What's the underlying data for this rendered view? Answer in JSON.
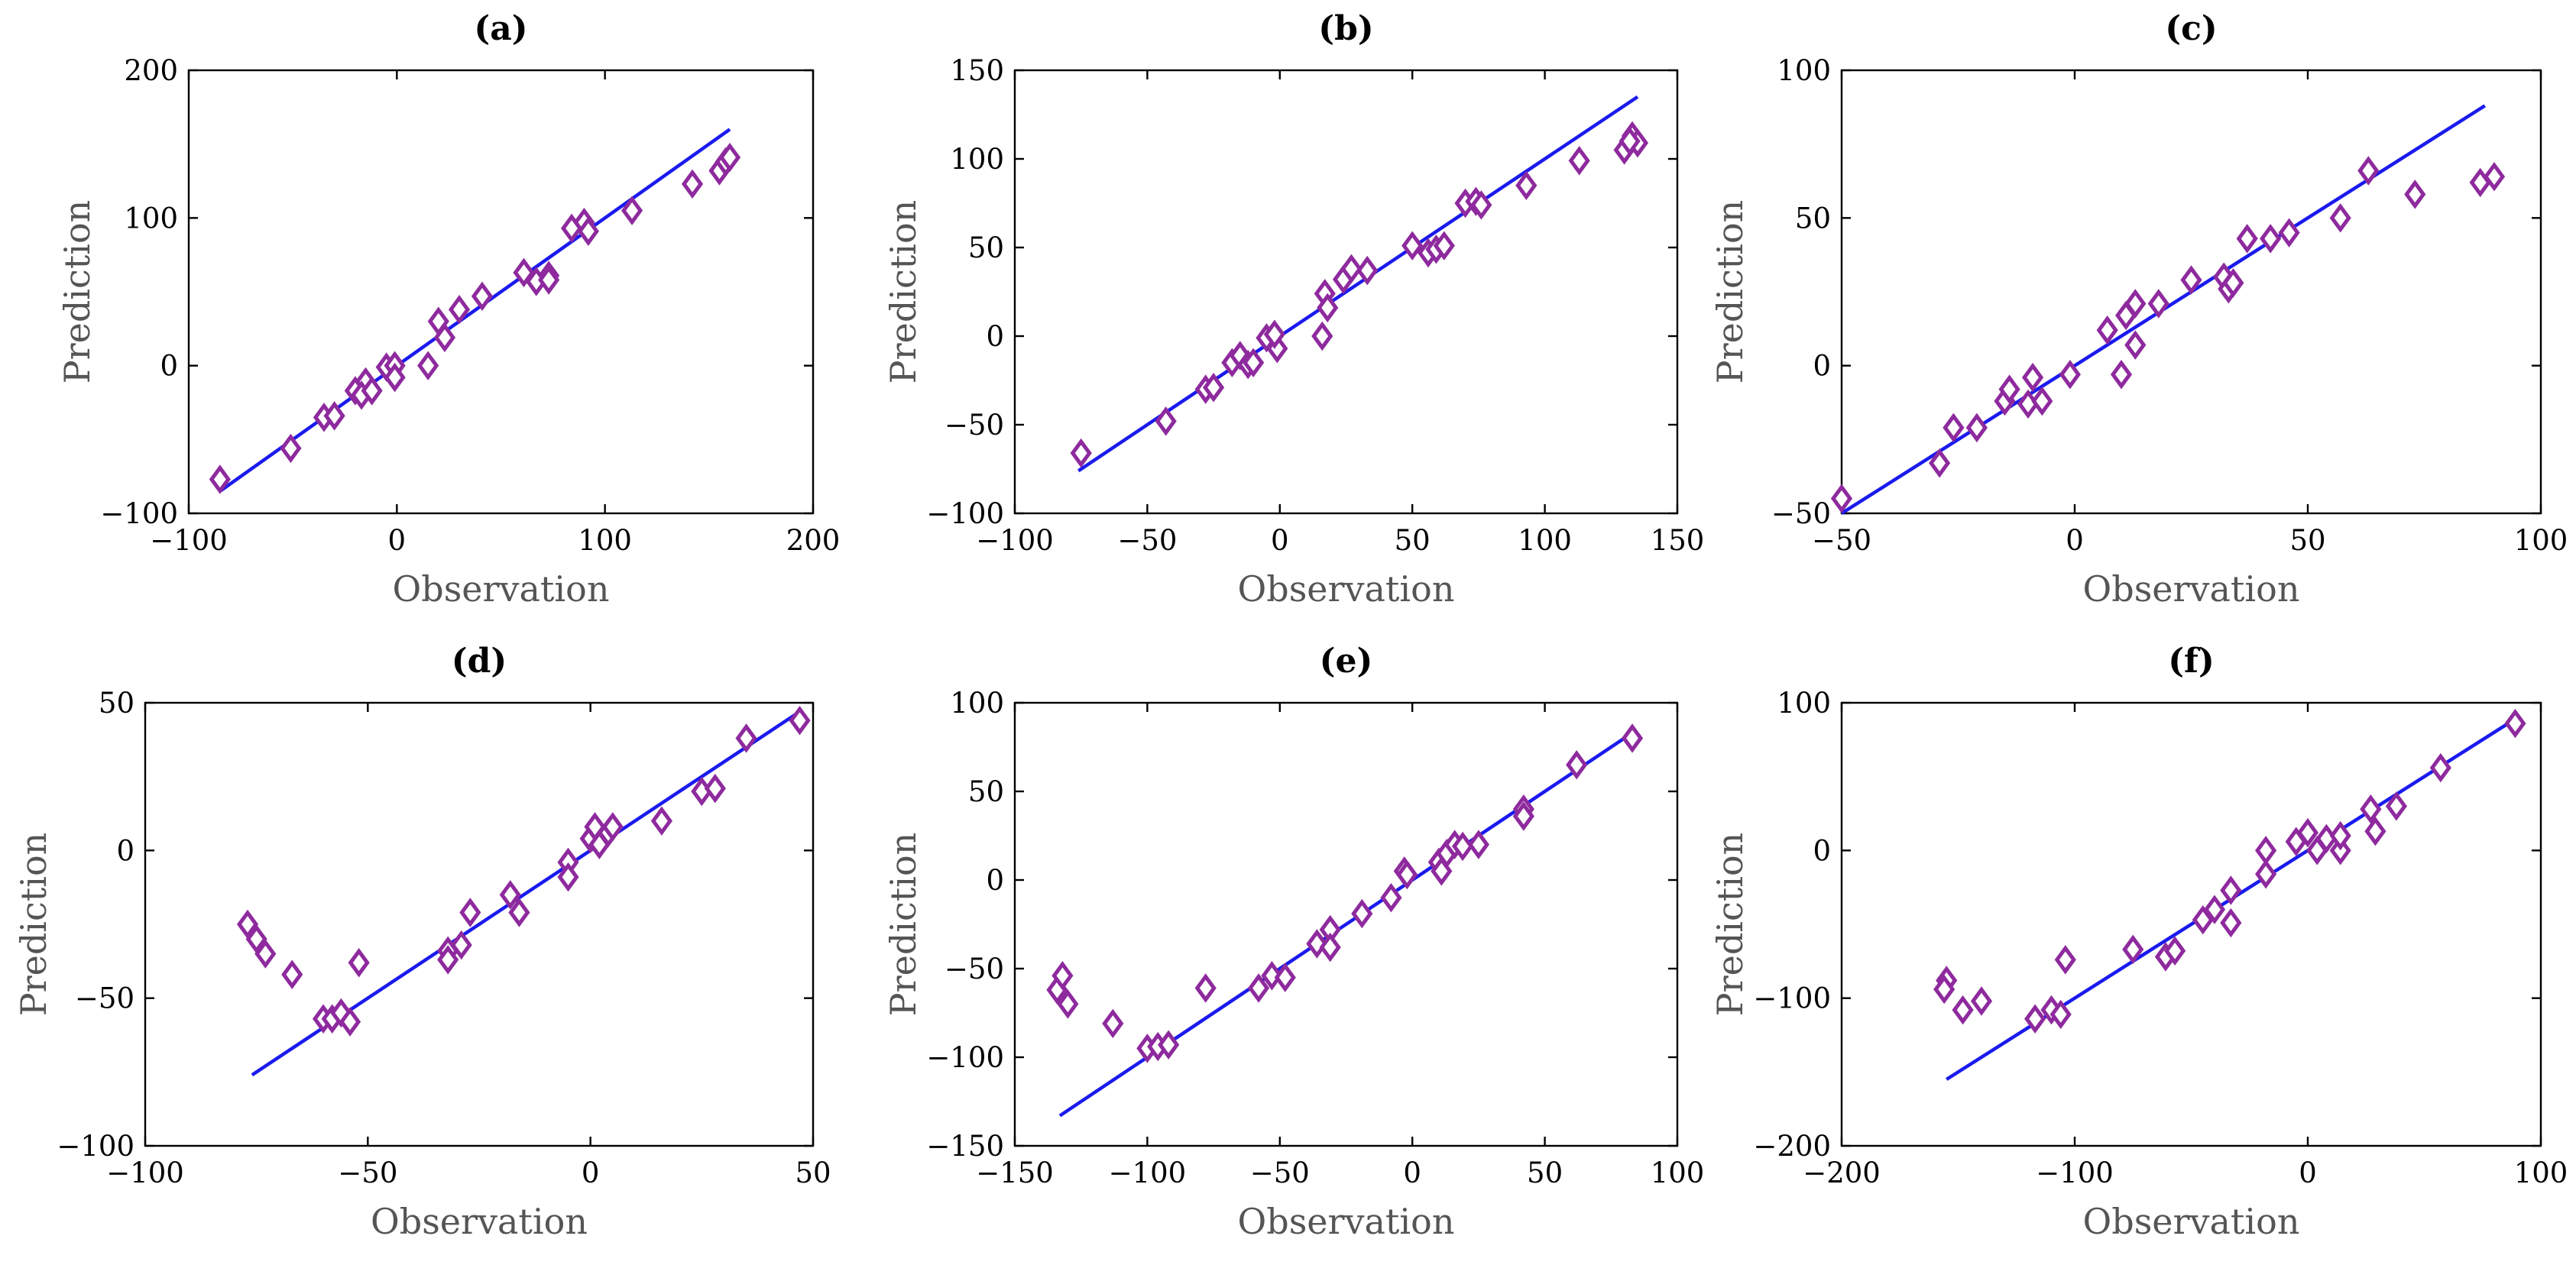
{
  "colors": {
    "marker": "#8e2a9e",
    "fit_line": "#1a1aee",
    "axes": "#000000",
    "axis_label": "#555555"
  },
  "chart_data": [
    {
      "type": "scatter",
      "title": "(a)",
      "xlabel": "Observation",
      "ylabel": "Prediction",
      "xlim": [
        -100,
        200
      ],
      "ylim": [
        -100,
        200
      ],
      "xticks": [
        -100,
        0,
        100,
        200
      ],
      "yticks": [
        -100,
        0,
        100,
        200
      ],
      "xtick_labels": [
        "−100",
        "0",
        "100",
        "200"
      ],
      "ytick_labels": [
        "−100",
        "0",
        "100",
        "200"
      ],
      "fit_line": {
        "x": [
          -85,
          160
        ],
        "y": [
          -85,
          160
        ]
      },
      "points": [
        [
          -85,
          -77
        ],
        [
          -51,
          -56
        ],
        [
          -35,
          -35
        ],
        [
          -30,
          -34
        ],
        [
          -20,
          -17
        ],
        [
          -15,
          -11
        ],
        [
          -17,
          -20
        ],
        [
          -12,
          -17
        ],
        [
          -5,
          -1
        ],
        [
          -1,
          0
        ],
        [
          -1,
          -8
        ],
        [
          15,
          0
        ],
        [
          20,
          30
        ],
        [
          23,
          19
        ],
        [
          30,
          38
        ],
        [
          41,
          47
        ],
        [
          61,
          63
        ],
        [
          67,
          57
        ],
        [
          73,
          61
        ],
        [
          73,
          58
        ],
        [
          84,
          93
        ],
        [
          90,
          97
        ],
        [
          92,
          91
        ],
        [
          113,
          105
        ],
        [
          142,
          123
        ],
        [
          155,
          132
        ],
        [
          158,
          138
        ],
        [
          160,
          141
        ]
      ]
    },
    {
      "type": "scatter",
      "title": "(b)",
      "xlabel": "Observation",
      "ylabel": "Prediction",
      "xlim": [
        -100,
        150
      ],
      "ylim": [
        -100,
        150
      ],
      "xticks": [
        -100,
        -50,
        0,
        50,
        100,
        150
      ],
      "yticks": [
        -100,
        -50,
        0,
        50,
        100,
        150
      ],
      "xtick_labels": [
        "−100",
        "−50",
        "0",
        "50",
        "100",
        "150"
      ],
      "ytick_labels": [
        "−100",
        "−50",
        "0",
        "50",
        "100",
        "150"
      ],
      "fit_line": {
        "x": [
          -76,
          135
        ],
        "y": [
          -76,
          135
        ]
      },
      "points": [
        [
          -75,
          -66
        ],
        [
          -43,
          -48
        ],
        [
          -28,
          -30
        ],
        [
          -25,
          -29
        ],
        [
          -18,
          -15
        ],
        [
          -15,
          -11
        ],
        [
          -12,
          -16
        ],
        [
          -10,
          -15
        ],
        [
          -5,
          -1
        ],
        [
          -1,
          -7
        ],
        [
          -2,
          1
        ],
        [
          16,
          0
        ],
        [
          17,
          24
        ],
        [
          18,
          16
        ],
        [
          24,
          32
        ],
        [
          27,
          38
        ],
        [
          33,
          37
        ],
        [
          50,
          51
        ],
        [
          56,
          47
        ],
        [
          59,
          49
        ],
        [
          62,
          51
        ],
        [
          70,
          75
        ],
        [
          74,
          76
        ],
        [
          76,
          74
        ],
        [
          93,
          85
        ],
        [
          113,
          99
        ],
        [
          130,
          105
        ],
        [
          133,
          113
        ],
        [
          135,
          109
        ],
        [
          132,
          110
        ]
      ]
    },
    {
      "type": "scatter",
      "title": "(c)",
      "xlabel": "Observation",
      "ylabel": "Prediction",
      "xlim": [
        -50,
        100
      ],
      "ylim": [
        -50,
        100
      ],
      "xticks": [
        -50,
        0,
        50,
        100
      ],
      "yticks": [
        -50,
        0,
        50,
        100
      ],
      "xtick_labels": [
        "−50",
        "0",
        "50",
        "100"
      ],
      "ytick_labels": [
        "−50",
        "0",
        "50",
        "100"
      ],
      "fit_line": {
        "x": [
          -50,
          88
        ],
        "y": [
          -50,
          88
        ]
      },
      "points": [
        [
          -50,
          -45
        ],
        [
          -29,
          -33
        ],
        [
          -26,
          -21
        ],
        [
          -21,
          -21
        ],
        [
          -15,
          -12
        ],
        [
          -14,
          -8
        ],
        [
          -10,
          -13
        ],
        [
          -9,
          -4
        ],
        [
          -7,
          -12
        ],
        [
          -1,
          -3
        ],
        [
          7,
          12
        ],
        [
          10,
          -3
        ],
        [
          11,
          17
        ],
        [
          13,
          21
        ],
        [
          13,
          7
        ],
        [
          18,
          21
        ],
        [
          25,
          29
        ],
        [
          32,
          30
        ],
        [
          33,
          26
        ],
        [
          34,
          28
        ],
        [
          37,
          43
        ],
        [
          42,
          43
        ],
        [
          46,
          45
        ],
        [
          57,
          50
        ],
        [
          63,
          66
        ],
        [
          73,
          58
        ],
        [
          87,
          62
        ],
        [
          90,
          64
        ]
      ]
    },
    {
      "type": "scatter",
      "title": "(d)",
      "xlabel": "Observation",
      "ylabel": "Prediction",
      "xlim": [
        -100,
        50
      ],
      "ylim": [
        -100,
        50
      ],
      "xticks": [
        -100,
        -50,
        0,
        50
      ],
      "yticks": [
        -100,
        50,
        0,
        -50
      ],
      "xtick_labels": [
        "−100",
        "−50",
        "0",
        "50"
      ],
      "ytick_labels": [
        "−100",
        "50",
        "0",
        "−50"
      ],
      "fit_line": {
        "x": [
          -76,
          46
        ],
        "y": [
          -76,
          46
        ]
      },
      "points": [
        [
          -77,
          -25
        ],
        [
          -75,
          -30
        ],
        [
          -73,
          -35
        ],
        [
          -67,
          -42
        ],
        [
          -60,
          -57
        ],
        [
          -58,
          -57
        ],
        [
          -56,
          -55
        ],
        [
          -54,
          -58
        ],
        [
          -52,
          -38
        ],
        [
          -32,
          -34
        ],
        [
          -32,
          -37
        ],
        [
          -29,
          -32
        ],
        [
          -27,
          -21
        ],
        [
          -18,
          -15
        ],
        [
          -16,
          -21
        ],
        [
          -5,
          -4
        ],
        [
          -5,
          -9
        ],
        [
          0,
          4
        ],
        [
          1,
          8
        ],
        [
          2,
          2
        ],
        [
          4,
          6
        ],
        [
          5,
          8
        ],
        [
          16,
          10
        ],
        [
          25,
          20
        ],
        [
          28,
          21
        ],
        [
          35,
          38
        ],
        [
          47,
          44
        ]
      ]
    },
    {
      "type": "scatter",
      "title": "(e)",
      "xlabel": "Observation",
      "ylabel": "Prediction",
      "xlim": [
        -150,
        100
      ],
      "ylim": [
        -150,
        100
      ],
      "xticks": [
        -150,
        -100,
        -50,
        0,
        50,
        100
      ],
      "yticks": [
        -150,
        -100,
        -50,
        0,
        50,
        100
      ],
      "xtick_labels": [
        "−150",
        "−100",
        "−50",
        "0",
        "50",
        "100"
      ],
      "ytick_labels": [
        "−150",
        "−100",
        "−50",
        "0",
        "50",
        "100"
      ],
      "fit_line": {
        "x": [
          -133,
          82
        ],
        "y": [
          -133,
          82
        ]
      },
      "points": [
        [
          -134,
          -62
        ],
        [
          -132,
          -54
        ],
        [
          -130,
          -70
        ],
        [
          -113,
          -81
        ],
        [
          -100,
          -95
        ],
        [
          -96,
          -94
        ],
        [
          -92,
          -93
        ],
        [
          -78,
          -61
        ],
        [
          -58,
          -61
        ],
        [
          -53,
          -54
        ],
        [
          -48,
          -55
        ],
        [
          -36,
          -36
        ],
        [
          -31,
          -28
        ],
        [
          -31,
          -38
        ],
        [
          -19,
          -19
        ],
        [
          -8,
          -10
        ],
        [
          -3,
          5
        ],
        [
          -2,
          3
        ],
        [
          10,
          10
        ],
        [
          11,
          5
        ],
        [
          13,
          15
        ],
        [
          16,
          20
        ],
        [
          19,
          19
        ],
        [
          25,
          20
        ],
        [
          42,
          40
        ],
        [
          42,
          36
        ],
        [
          62,
          65
        ],
        [
          83,
          80
        ]
      ]
    },
    {
      "type": "scatter",
      "title": "(f)",
      "xlabel": "Observation",
      "ylabel": "Prediction",
      "xlim": [
        -200,
        100
      ],
      "ylim": [
        -200,
        100
      ],
      "xticks": [
        -200,
        -100,
        0,
        100
      ],
      "yticks": [
        -200,
        -100,
        0,
        100
      ],
      "xtick_labels": [
        "−200",
        "−100",
        "0",
        "100"
      ],
      "ytick_labels": [
        "−200",
        "−100",
        "0",
        "100"
      ],
      "fit_line": {
        "x": [
          -155,
          88
        ],
        "y": [
          -155,
          88
        ]
      },
      "points": [
        [
          -155,
          -88
        ],
        [
          -156,
          -94
        ],
        [
          -148,
          -108
        ],
        [
          -140,
          -102
        ],
        [
          -117,
          -114
        ],
        [
          -110,
          -108
        ],
        [
          -106,
          -111
        ],
        [
          -104,
          -74
        ],
        [
          -75,
          -67
        ],
        [
          -61,
          -72
        ],
        [
          -57,
          -68
        ],
        [
          -45,
          -47
        ],
        [
          -40,
          -40
        ],
        [
          -33,
          -27
        ],
        [
          -33,
          -49
        ],
        [
          -18,
          -16
        ],
        [
          -18,
          0
        ],
        [
          -5,
          6
        ],
        [
          0,
          12
        ],
        [
          4,
          0
        ],
        [
          8,
          8
        ],
        [
          14,
          0
        ],
        [
          14,
          10
        ],
        [
          27,
          28
        ],
        [
          29,
          13
        ],
        [
          38,
          30
        ],
        [
          57,
          56
        ],
        [
          89,
          86
        ]
      ]
    }
  ]
}
